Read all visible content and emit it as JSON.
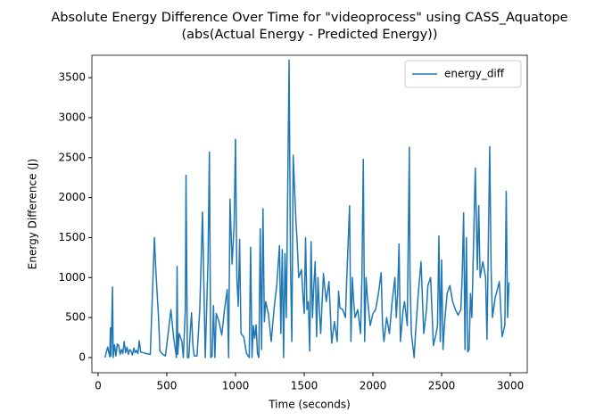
{
  "chart_data": {
    "type": "line",
    "title": "Absolute Energy Difference Over Time for \"videoprocess\" using CASS_Aquatope",
    "subtitle": "(abs(Actual Energy - Predicted Energy))",
    "x_label": "Time (seconds)",
    "y_label": "Energy Difference (J)",
    "legend": "upper right",
    "grid": false,
    "xlim": [
      -45,
      3123
    ],
    "ylim": [
      -190,
      3780
    ],
    "xticks": [
      0,
      500,
      1000,
      1500,
      2000,
      2500,
      3000
    ],
    "yticks": [
      0,
      500,
      1000,
      1500,
      2000,
      2500,
      3000,
      3500
    ],
    "x": [
      50,
      70,
      85,
      90,
      95,
      105,
      110,
      120,
      130,
      140,
      150,
      160,
      170,
      180,
      190,
      200,
      210,
      220,
      230,
      240,
      250,
      260,
      270,
      280,
      290,
      300,
      310,
      330,
      350,
      380,
      410,
      420,
      440,
      450,
      470,
      490,
      510,
      530,
      550,
      570,
      575,
      580,
      590,
      610,
      620,
      635,
      640,
      650,
      660,
      670,
      680,
      690,
      700,
      720,
      740,
      760,
      780,
      790,
      800,
      810,
      820,
      830,
      840,
      850,
      860,
      880,
      900,
      920,
      940,
      950,
      960,
      975,
      990,
      1000,
      1010,
      1020,
      1030,
      1040,
      1060,
      1080,
      1100,
      1110,
      1120,
      1130,
      1140,
      1150,
      1160,
      1170,
      1180,
      1190,
      1200,
      1210,
      1220,
      1240,
      1260,
      1280,
      1300,
      1320,
      1330,
      1340,
      1350,
      1360,
      1370,
      1390,
      1400,
      1410,
      1420,
      1430,
      1440,
      1450,
      1460,
      1480,
      1490,
      1500,
      1510,
      1520,
      1530,
      1540,
      1550,
      1560,
      1570,
      1580,
      1590,
      1600,
      1610,
      1620,
      1640,
      1660,
      1680,
      1700,
      1720,
      1740,
      1750,
      1760,
      1780,
      1800,
      1810,
      1830,
      1840,
      1850,
      1860,
      1870,
      1890,
      1910,
      1920,
      1930,
      1940,
      1950,
      1960,
      1980,
      2000,
      2020,
      2040,
      2060,
      2070,
      2080,
      2100,
      2120,
      2140,
      2160,
      2170,
      2180,
      2190,
      2200,
      2220,
      2230,
      2250,
      2265,
      2270,
      2280,
      2300,
      2310,
      2330,
      2350,
      2370,
      2390,
      2400,
      2420,
      2440,
      2460,
      2470,
      2480,
      2490,
      2500,
      2510,
      2520,
      2540,
      2560,
      2580,
      2600,
      2620,
      2640,
      2650,
      2660,
      2670,
      2680,
      2690,
      2700,
      2710,
      2720,
      2745,
      2760,
      2770,
      2780,
      2800,
      2820,
      2830,
      2850,
      2860,
      2870,
      2890,
      2920,
      2940,
      2960,
      2970,
      2980,
      2990
    ],
    "series": [
      {
        "name": "energy_diff",
        "color": "#1f77b4",
        "values": [
          0,
          130,
          10,
          370,
          20,
          880,
          0,
          160,
          20,
          170,
          150,
          40,
          100,
          50,
          200,
          60,
          130,
          40,
          100,
          80,
          30,
          120,
          60,
          90,
          50,
          210,
          70,
          60,
          50,
          40,
          1500,
          1100,
          500,
          80,
          40,
          20,
          300,
          600,
          250,
          0,
          1140,
          40,
          300,
          200,
          0,
          600,
          2280,
          0,
          0,
          300,
          560,
          150,
          20,
          20,
          600,
          1820,
          0,
          600,
          1200,
          2570,
          0,
          20,
          650,
          0,
          550,
          450,
          280,
          600,
          850,
          0,
          1980,
          1170,
          1650,
          2730,
          1000,
          640,
          1480,
          300,
          260,
          50,
          0,
          1380,
          0,
          400,
          240,
          410,
          50,
          0,
          1610,
          100,
          1860,
          450,
          700,
          540,
          200,
          600,
          900,
          1400,
          300,
          1350,
          0,
          1300,
          500,
          3720,
          1200,
          200,
          2530,
          2100,
          1700,
          1400,
          1000,
          1100,
          800,
          550,
          1500,
          600,
          700,
          80,
          1450,
          500,
          900,
          1200,
          260,
          1000,
          600,
          300,
          1050,
          700,
          950,
          180,
          450,
          200,
          830,
          620,
          600,
          500,
          1000,
          1900,
          200,
          1000,
          700,
          500,
          600,
          300,
          1000,
          2480,
          200,
          1000,
          750,
          400,
          550,
          600,
          800,
          1060,
          400,
          200,
          500,
          300,
          700,
          1000,
          500,
          800,
          1420,
          200,
          600,
          700,
          400,
          2630,
          1000,
          300,
          0,
          300,
          800,
          1200,
          300,
          600,
          900,
          1000,
          150,
          300,
          400,
          1520,
          200,
          1220,
          100,
          400,
          800,
          900,
          700,
          600,
          530,
          600,
          1050,
          1810,
          100,
          1500,
          70,
          100,
          800,
          500,
          2370,
          1100,
          1900,
          1000,
          1200,
          1000,
          230,
          2640,
          1100,
          500,
          750,
          950,
          260,
          400,
          2080,
          500,
          940
        ]
      }
    ]
  }
}
